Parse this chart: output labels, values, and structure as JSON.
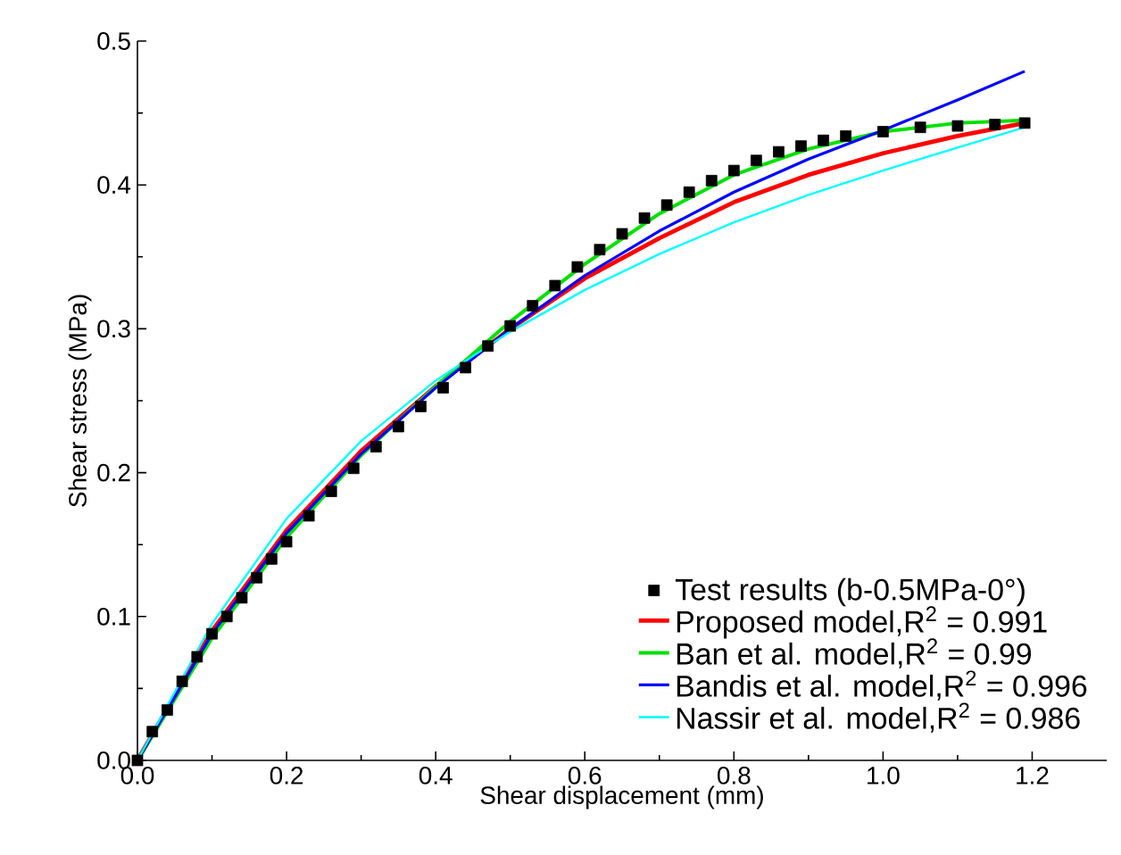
{
  "chart_data": {
    "type": "line",
    "xlabel": "Shear displacement (mm)",
    "ylabel": "Shear stress (MPa)",
    "xlim": [
      0,
      1.3
    ],
    "ylim": [
      0,
      0.5
    ],
    "xticks": [
      {
        "value": 0,
        "label": "0.0"
      },
      0.2,
      0.4,
      0.6,
      0.8,
      {
        "value": 1,
        "label": "1.0"
      },
      1.2
    ],
    "yticks": [
      {
        "value": 0,
        "label": "0.0"
      },
      0.1,
      0.2,
      0.3,
      0.4,
      0.5
    ],
    "grid": false,
    "legend": "bottom right",
    "series": [
      {
        "name": "Test results (b-0.5MPa-0°)",
        "type": "scatter",
        "marker": "square",
        "color": "#000000",
        "x": [
          0,
          0.02,
          0.04,
          0.06,
          0.08,
          0.1,
          0.12,
          0.14,
          0.16,
          0.18,
          0.2,
          0.23,
          0.26,
          0.29,
          0.32,
          0.35,
          0.38,
          0.41,
          0.44,
          0.47,
          0.5,
          0.53,
          0.56,
          0.59,
          0.62,
          0.65,
          0.68,
          0.71,
          0.74,
          0.77,
          0.8,
          0.83,
          0.86,
          0.89,
          0.92,
          0.95,
          1.0,
          1.05,
          1.1,
          1.15,
          1.19
        ],
        "values": [
          0,
          0.02,
          0.035,
          0.055,
          0.072,
          0.088,
          0.1,
          0.113,
          0.127,
          0.14,
          0.152,
          0.17,
          0.187,
          0.203,
          0.218,
          0.232,
          0.246,
          0.259,
          0.273,
          0.288,
          0.302,
          0.316,
          0.33,
          0.343,
          0.355,
          0.366,
          0.377,
          0.386,
          0.395,
          0.403,
          0.41,
          0.417,
          0.423,
          0.427,
          0.431,
          0.434,
          0.437,
          0.44,
          0.441,
          0.442,
          0.443
        ]
      },
      {
        "name": "Proposed model,R$^{2}$ = 0.991",
        "color": "#ff0000",
        "x": [
          0,
          0.1,
          0.2,
          0.3,
          0.4,
          0.5,
          0.6,
          0.7,
          0.8,
          0.9,
          1.0,
          1.1,
          1.19
        ],
        "values": [
          0,
          0.09,
          0.16,
          0.215,
          0.26,
          0.3,
          0.335,
          0.363,
          0.388,
          0.407,
          0.422,
          0.434,
          0.443
        ]
      },
      {
        "name": "Ban et al. model,R$^{2}$ = 0.99",
        "color": "#00e000",
        "x": [
          0,
          0.1,
          0.2,
          0.3,
          0.4,
          0.5,
          0.6,
          0.7,
          0.8,
          0.9,
          1.0,
          1.1,
          1.19
        ],
        "values": [
          0,
          0.085,
          0.155,
          0.212,
          0.26,
          0.305,
          0.345,
          0.38,
          0.407,
          0.425,
          0.437,
          0.443,
          0.445
        ]
      },
      {
        "name": "Bandis et al. model,R$^{2}$ = 0.996",
        "color": "#0000ff",
        "x": [
          0,
          0.1,
          0.2,
          0.3,
          0.4,
          0.5,
          0.6,
          0.7,
          0.8,
          0.9,
          1.0,
          1.1,
          1.19
        ],
        "values": [
          0,
          0.088,
          0.158,
          0.213,
          0.259,
          0.3,
          0.337,
          0.368,
          0.395,
          0.418,
          0.438,
          0.459,
          0.479
        ]
      },
      {
        "name": "Nassir et al. model,R$^{2}$ = 0.986",
        "color": "#00ffff",
        "x": [
          0,
          0.1,
          0.2,
          0.3,
          0.4,
          0.5,
          0.6,
          0.7,
          0.8,
          0.9,
          1.0,
          1.1,
          1.19
        ],
        "values": [
          0,
          0.095,
          0.168,
          0.222,
          0.264,
          0.298,
          0.327,
          0.352,
          0.374,
          0.393,
          0.41,
          0.426,
          0.44
        ]
      }
    ]
  }
}
